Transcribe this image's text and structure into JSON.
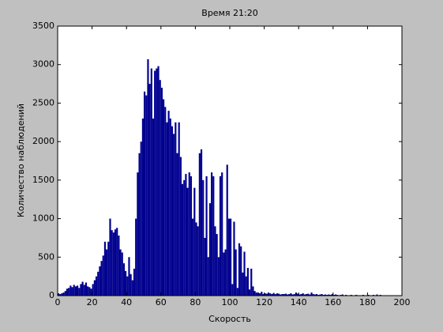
{
  "chart_data": {
    "type": "histogram",
    "title": "Время 21:20",
    "x_label": "Скорость",
    "y_label": "Количество наблюдений",
    "color": "#00008f",
    "bins": [
      0,
      1,
      2,
      3,
      4,
      5,
      6,
      7,
      8,
      9,
      10,
      11,
      12,
      13,
      14,
      15,
      16,
      17,
      18,
      19,
      20,
      21,
      22,
      23,
      24,
      25,
      26,
      27,
      28,
      29,
      30,
      31,
      32,
      33,
      34,
      35,
      36,
      37,
      38,
      39,
      40,
      41,
      42,
      43,
      44,
      45,
      46,
      47,
      48,
      49,
      50,
      51,
      52,
      53,
      54,
      55,
      56,
      57,
      58,
      59,
      60,
      61,
      62,
      63,
      64,
      65,
      66,
      67,
      68,
      69,
      70,
      71,
      72,
      73,
      74,
      75,
      76,
      77,
      78,
      79,
      80,
      81,
      82,
      83,
      84,
      85,
      86,
      87,
      88,
      89,
      90,
      91,
      92,
      93,
      94,
      95,
      96,
      97,
      98,
      99,
      100,
      101,
      102,
      103,
      104,
      105,
      106,
      107,
      108,
      109,
      110,
      111,
      112,
      113,
      114,
      115,
      116,
      117,
      118,
      119,
      120,
      121,
      122,
      123,
      124,
      125,
      126,
      127,
      128,
      129,
      130,
      131,
      132,
      133,
      134,
      135,
      136,
      137,
      138,
      139,
      140,
      141,
      142,
      143,
      144,
      145,
      146,
      147,
      148,
      149,
      150,
      151,
      152,
      153,
      154,
      155,
      156,
      157,
      158,
      159,
      160,
      161,
      162,
      163,
      164,
      165,
      166,
      167,
      168,
      169,
      170,
      171,
      172,
      173,
      174,
      175,
      176,
      177,
      178,
      179,
      180,
      181,
      182,
      183,
      184,
      185,
      186,
      187,
      188,
      189,
      190
    ],
    "values": [
      30,
      20,
      30,
      40,
      60,
      90,
      100,
      130,
      110,
      140,
      120,
      130,
      100,
      150,
      180,
      140,
      170,
      120,
      110,
      90,
      150,
      200,
      250,
      310,
      380,
      450,
      520,
      700,
      600,
      700,
      1000,
      850,
      820,
      860,
      880,
      780,
      600,
      560,
      420,
      320,
      250,
      500,
      280,
      200,
      350,
      1000,
      1600,
      1850,
      2000,
      2300,
      2650,
      2600,
      3070,
      2750,
      2950,
      2300,
      2920,
      2950,
      2980,
      2800,
      2700,
      2550,
      2450,
      2250,
      2400,
      2300,
      2200,
      2100,
      2250,
      1850,
      2250,
      1800,
      1450,
      1500,
      1580,
      1400,
      1600,
      1550,
      1000,
      1400,
      950,
      900,
      1850,
      1900,
      1500,
      750,
      1550,
      500,
      1200,
      1600,
      1550,
      900,
      800,
      500,
      1550,
      1600,
      560,
      600,
      1700,
      1000,
      1000,
      150,
      960,
      600,
      100,
      680,
      640,
      300,
      570,
      250,
      360,
      80,
      350,
      120,
      60,
      40,
      40,
      30,
      50,
      20,
      30,
      25,
      40,
      30,
      20,
      35,
      20,
      30,
      25,
      15,
      20,
      20,
      25,
      15,
      20,
      30,
      15,
      20,
      40,
      25,
      15,
      20,
      30,
      15,
      20,
      25,
      15,
      40,
      20,
      15,
      20,
      10,
      15,
      20,
      10,
      15,
      10,
      15,
      10,
      20,
      10,
      15,
      10,
      5,
      10,
      15,
      5,
      10,
      5,
      5,
      10,
      5,
      5,
      10,
      5,
      5,
      5,
      10,
      5,
      5,
      10,
      5,
      5,
      10,
      5,
      15,
      5,
      10,
      5,
      0,
      0
    ],
    "xlim": [
      0,
      200
    ],
    "ylim": [
      0,
      3500
    ],
    "xticks": [
      0,
      20,
      40,
      60,
      80,
      100,
      120,
      140,
      160,
      180,
      200
    ],
    "yticks": [
      0,
      500,
      1000,
      1500,
      2000,
      2500,
      3000,
      3500
    ]
  }
}
